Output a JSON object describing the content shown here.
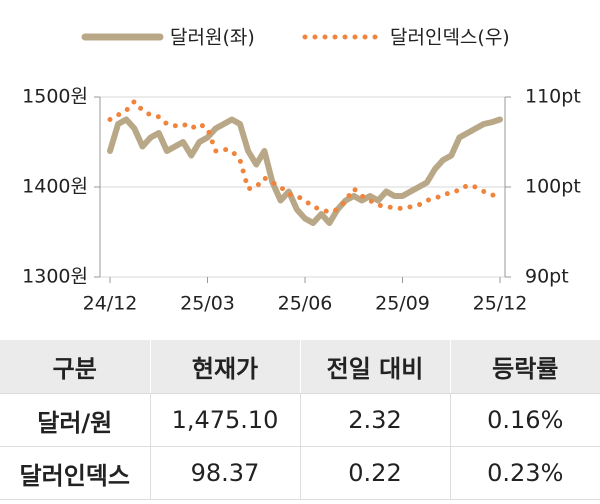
{
  "chart_data": {
    "type": "line",
    "categories": [
      "24/12",
      null,
      null,
      null,
      null,
      null,
      null,
      null,
      null,
      null,
      null,
      null,
      "25/03",
      null,
      null,
      null,
      null,
      null,
      null,
      null,
      null,
      null,
      null,
      null,
      "25/06",
      null,
      null,
      null,
      null,
      null,
      null,
      null,
      null,
      null,
      null,
      null,
      "25/09",
      null,
      null,
      null,
      null,
      null,
      null,
      null,
      null,
      null,
      null,
      null,
      "25/12"
    ],
    "series": [
      {
        "name": "달러원(좌)",
        "color": "#b9a888",
        "axis": "y",
        "values": [
          1440,
          1470,
          1475,
          1465,
          1445,
          1455,
          1460,
          1440,
          1445,
          1450,
          1435,
          1450,
          1455,
          1465,
          1470,
          1475,
          1470,
          1440,
          1425,
          1440,
          1405,
          1385,
          1395,
          1375,
          1365,
          1360,
          1370,
          1360,
          1375,
          1385,
          1390,
          1385,
          1390,
          1385,
          1395,
          1390,
          1390,
          1395,
          1400,
          1405,
          1420,
          1430,
          1435,
          1455,
          1460,
          1465,
          1470,
          1472,
          1475
        ]
      },
      {
        "name": "달러인덱스(우)",
        "color": "#f0843c",
        "axis": "y2",
        "values": [
          107.5,
          108,
          108.5,
          109.5,
          108.5,
          108,
          107.8,
          107,
          106.8,
          107,
          106.5,
          107,
          106.5,
          104,
          104.2,
          104,
          103,
          99.8,
          100,
          101,
          100.5,
          100,
          99.2,
          99,
          98.5,
          97.8,
          97.5,
          97.2,
          97.5,
          98.5,
          99.8,
          99,
          98.5,
          98,
          97.8,
          97.7,
          97.6,
          97.8,
          98,
          98.5,
          98.8,
          99,
          99.5,
          99.6,
          100.2,
          100,
          99.5,
          99.2,
          98.4
        ]
      }
    ],
    "ylim": [
      1300,
      1500
    ],
    "yticks": [
      {
        "value": 1300,
        "label": "1300원"
      },
      {
        "value": 1400,
        "label": "1400원"
      },
      {
        "value": 1500,
        "label": "1500원"
      }
    ],
    "y2lim": [
      90,
      110
    ],
    "y2ticks": [
      {
        "value": 90,
        "label": "90pt"
      },
      {
        "value": 100,
        "label": "100pt"
      },
      {
        "value": 110,
        "label": "110pt"
      }
    ],
    "grid": true
  },
  "table": {
    "header": [
      "구분",
      "현재가",
      "전일 대비",
      "등락률"
    ],
    "rows": [
      [
        "달러/원",
        "1,475.10",
        "2.32",
        "0.16%"
      ],
      [
        "달러인덱스",
        "98.37",
        "0.22",
        "0.23%"
      ]
    ]
  }
}
